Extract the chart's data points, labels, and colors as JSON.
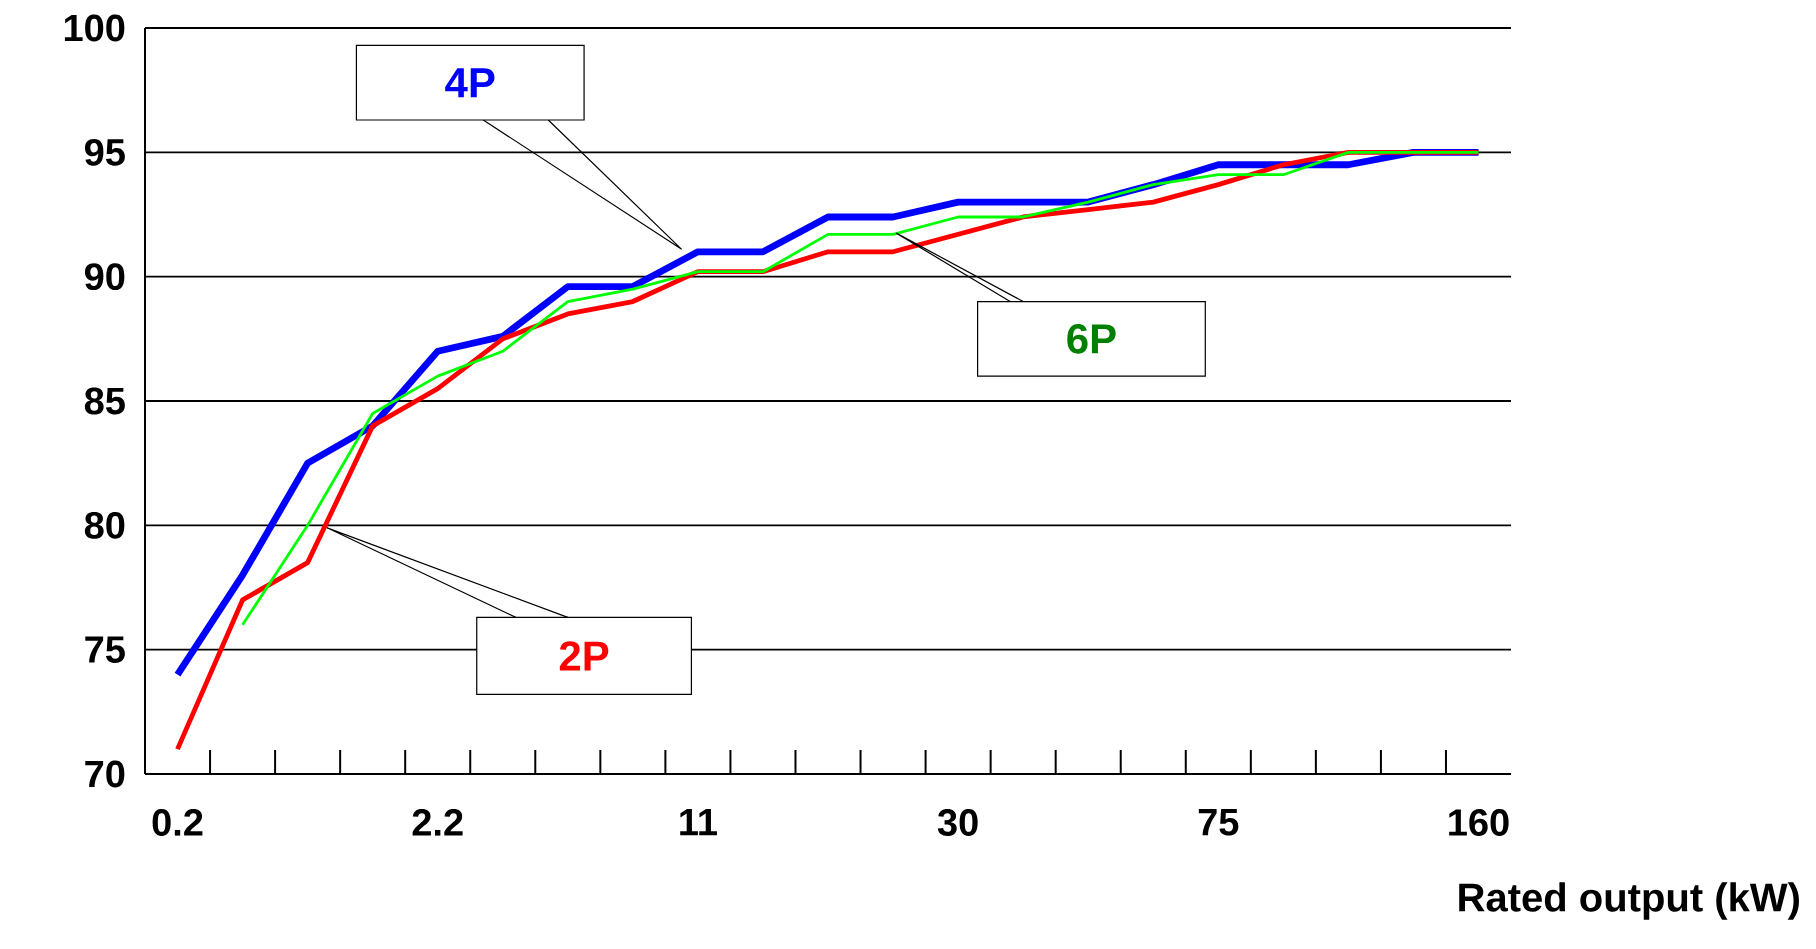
{
  "chart_data": {
    "type": "line",
    "xlabel": "Rated output (kW)",
    "categories": [
      "0.2",
      null,
      null,
      null,
      "2.2",
      null,
      null,
      null,
      "11",
      null,
      null,
      null,
      "30",
      null,
      null,
      null,
      "75",
      null,
      null,
      null,
      "160"
    ],
    "ylim": [
      70,
      100
    ],
    "yticks": [
      70,
      75,
      80,
      85,
      90,
      95,
      100
    ],
    "grid": "y",
    "marker": "none",
    "line_style": "solid",
    "series": [
      {
        "name": "4P",
        "color": "#0000ff",
        "values": [
          74,
          78,
          82.5,
          84,
          87,
          87.6,
          89.6,
          89.6,
          91,
          91,
          92.4,
          92.4,
          93,
          93,
          93,
          93.7,
          94.5,
          94.5,
          94.5,
          95,
          95
        ]
      },
      {
        "name": "2P",
        "color": "#ff0000",
        "values": [
          71,
          77,
          78.5,
          84,
          85.5,
          87.5,
          88.5,
          89,
          90.2,
          90.2,
          91,
          91,
          91.7,
          92.4,
          92.7,
          93,
          93.7,
          94.5,
          95,
          95,
          95
        ]
      },
      {
        "name": "6P",
        "color": "#00ff00",
        "values": [
          null,
          76,
          80,
          84.5,
          86,
          87,
          89,
          89.5,
          90.2,
          90.2,
          91.7,
          91.7,
          92.4,
          92.4,
          93,
          93.7,
          94.1,
          94.1,
          95,
          95,
          95
        ]
      }
    ]
  }
}
